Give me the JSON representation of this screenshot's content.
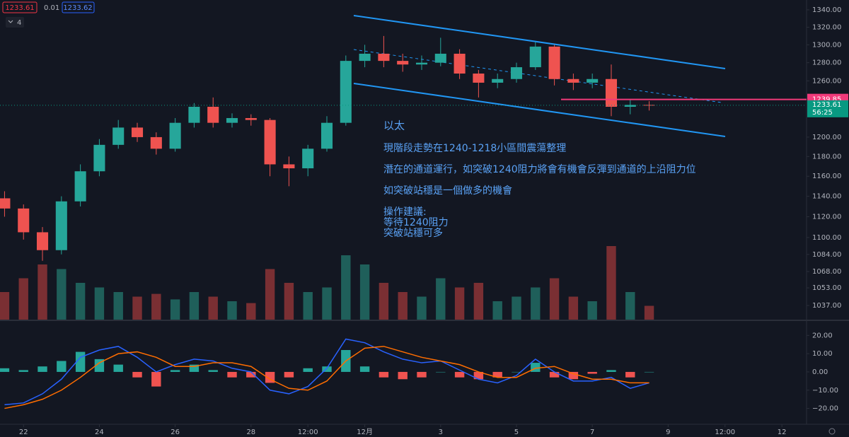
{
  "header": {
    "bid": "1233.61",
    "spread": "0.01",
    "ask": "1233.62",
    "indicator_count": "4"
  },
  "chart_data": [
    {
      "type": "candlestick",
      "x": [
        21.5,
        22,
        22.5,
        23,
        23.5,
        24,
        24.5,
        25,
        25.5,
        26,
        26.5,
        27,
        27.5,
        28,
        28.5,
        29,
        29.5,
        30,
        30.5,
        31,
        31.5,
        32,
        32.5,
        33,
        33.5,
        34,
        34.5,
        35,
        35.5,
        36,
        36.5,
        37,
        37.5,
        38,
        38.5
      ],
      "open": [
        1138,
        1128,
        1105,
        1088,
        1135,
        1165,
        1192,
        1210,
        1200,
        1188,
        1215,
        1232,
        1215,
        1220,
        1218,
        1172,
        1168,
        1188,
        1215,
        1282,
        1290,
        1282,
        1278,
        1280,
        1290,
        1268,
        1258,
        1262,
        1275,
        1298,
        1262,
        1258,
        1262,
        1232,
        1234
      ],
      "high": [
        1145,
        1132,
        1110,
        1140,
        1172,
        1198,
        1218,
        1215,
        1205,
        1220,
        1236,
        1242,
        1225,
        1224,
        1220,
        1180,
        1192,
        1222,
        1288,
        1300,
        1310,
        1290,
        1288,
        1308,
        1295,
        1272,
        1268,
        1280,
        1303,
        1300,
        1268,
        1268,
        1278,
        1240,
        1238
      ],
      "low": [
        1120,
        1098,
        1078,
        1084,
        1130,
        1160,
        1188,
        1195,
        1182,
        1185,
        1210,
        1210,
        1210,
        1212,
        1160,
        1150,
        1160,
        1185,
        1212,
        1275,
        1275,
        1270,
        1272,
        1276,
        1262,
        1242,
        1252,
        1258,
        1272,
        1255,
        1250,
        1252,
        1222,
        1224,
        1228
      ],
      "close": [
        1128,
        1105,
        1088,
        1135,
        1165,
        1192,
        1210,
        1200,
        1188,
        1215,
        1232,
        1215,
        1220,
        1218,
        1172,
        1168,
        1188,
        1215,
        1282,
        1290,
        1282,
        1278,
        1280,
        1290,
        1268,
        1258,
        1262,
        1275,
        1298,
        1262,
        1258,
        1262,
        1232,
        1234,
        1233.61
      ],
      "up_color": "#26a69a",
      "down_color": "#ef5350",
      "log": true,
      "grid": false,
      "xlim": [
        21.38,
        42.65
      ],
      "ylim": [
        1024.4,
        1351.5
      ],
      "yticks": [
        {
          "value": 1340,
          "label": "1340.00"
        },
        {
          "value": 1320,
          "label": "1320.00"
        },
        {
          "value": 1300,
          "label": "1300.00"
        },
        {
          "value": 1280,
          "label": "1280.00"
        },
        {
          "value": 1260,
          "label": "1260.00"
        },
        {
          "value": 1200,
          "label": "1200.00"
        },
        {
          "value": 1180,
          "label": "1180.00"
        },
        {
          "value": 1160,
          "label": "1160.00"
        },
        {
          "value": 1140,
          "label": "1140.00"
        },
        {
          "value": 1120,
          "label": "1120.00"
        },
        {
          "value": 1100,
          "label": "1100.00"
        },
        {
          "value": 1084,
          "label": "1084.00"
        },
        {
          "value": 1068,
          "label": "1068.00"
        },
        {
          "value": 1053,
          "label": "1053.00"
        },
        {
          "value": 1037,
          "label": "1037.00"
        }
      ],
      "level": {
        "value": 1239.85,
        "color": "#f23a7a"
      },
      "price_line": {
        "value": 1233.61,
        "countdown": "56:25",
        "color": "#089981"
      },
      "annotations": [
        "以太",
        "現階段走勢在1240-1218小區間震蕩整理",
        "潛在的通道運行，如突破1240阻力將會有機會反彈到通道的上沿阻力位",
        "如突破站穩是一個做多的機會",
        "操作建議:",
        "等待1240阻力",
        "突破站穩可多"
      ],
      "annotation_color": "#5aa2f5"
    },
    {
      "type": "bar",
      "x": [
        21.5,
        22,
        22.5,
        23,
        23.5,
        24,
        24.5,
        25,
        25.5,
        26,
        26.5,
        27,
        27.5,
        28,
        28.5,
        29,
        29.5,
        30,
        30.5,
        31,
        31.5,
        32,
        32.5,
        33,
        33.5,
        34,
        34.5,
        35,
        35.5,
        36,
        36.5,
        37,
        37.5,
        38,
        38.5
      ],
      "values": [
        30,
        45,
        60,
        55,
        40,
        35,
        30,
        25,
        28,
        22,
        30,
        25,
        20,
        18,
        55,
        40,
        30,
        35,
        70,
        60,
        40,
        30,
        25,
        45,
        35,
        40,
        20,
        25,
        35,
        45,
        25,
        20,
        80,
        30,
        15
      ],
      "up_color": "#1f5f5a",
      "down_color": "#7a2f33",
      "xlim": [
        21.38,
        42.65
      ],
      "ylim": [
        0,
        100
      ]
    },
    {
      "type": "macd",
      "x": [
        21.5,
        22,
        22.5,
        23,
        23.5,
        24,
        24.5,
        25,
        25.5,
        26,
        26.5,
        27,
        27.5,
        28,
        28.5,
        29,
        29.5,
        30,
        30.5,
        31,
        31.5,
        32,
        32.5,
        33,
        33.5,
        34,
        34.5,
        35,
        35.5,
        36,
        36.5,
        37,
        37.5,
        38,
        38.5
      ],
      "series": [
        {
          "color": "#2962ff",
          "values": [
            -18,
            -17,
            -12,
            -4,
            8,
            12,
            14,
            8,
            0,
            4,
            7,
            6,
            2,
            0,
            -10,
            -12,
            -8,
            2,
            18,
            16,
            11,
            7,
            5,
            6,
            1,
            -4,
            -6,
            -2,
            7,
            0,
            -5,
            -5,
            -3,
            -9,
            -6
          ]
        },
        {
          "color": "#ff6d00",
          "values": [
            -20,
            -18,
            -15,
            -10,
            -3,
            5,
            10,
            11,
            8,
            3,
            3,
            5,
            5,
            3,
            -4,
            -9,
            -10,
            -5,
            6,
            13,
            14,
            11,
            8,
            6,
            4,
            0,
            -3,
            -3,
            2,
            3,
            -1,
            -4,
            -4,
            -6,
            -6
          ]
        }
      ],
      "histogram": {
        "values": [
          2,
          1,
          3,
          6,
          11,
          7,
          4,
          -3,
          -8,
          1,
          4,
          1,
          -3,
          -3,
          -6,
          -3,
          2,
          3,
          12,
          3,
          -3,
          -4,
          -3,
          0,
          -3,
          -4,
          -3,
          0,
          5,
          -3,
          -4,
          -1,
          1,
          -3,
          0
        ],
        "up_color": "#26a69a",
        "down_color": "#ef5350"
      },
      "xlim": [
        21.38,
        42.65
      ],
      "ylim": [
        -28.7,
        27.5
      ],
      "yticks": [
        {
          "value": 20,
          "label": "20.00"
        },
        {
          "value": 10,
          "label": "10.00"
        },
        {
          "value": 0,
          "label": "0.00"
        },
        {
          "value": -10,
          "label": "−10.00"
        },
        {
          "value": -20,
          "label": "−20.00"
        }
      ],
      "xticks": [
        {
          "value": 22,
          "label": "22"
        },
        {
          "value": 24,
          "label": "24"
        },
        {
          "value": 26,
          "label": "26"
        },
        {
          "value": 28,
          "label": "28"
        },
        {
          "value": 29.5,
          "label": "12:00"
        },
        {
          "value": 31,
          "label": "12月"
        },
        {
          "value": 33,
          "label": "3"
        },
        {
          "value": 35,
          "label": "5"
        },
        {
          "value": 37,
          "label": "7"
        },
        {
          "value": 39,
          "label": "9"
        },
        {
          "value": 40.5,
          "label": "12:00"
        },
        {
          "value": 42,
          "label": "12"
        }
      ]
    }
  ]
}
